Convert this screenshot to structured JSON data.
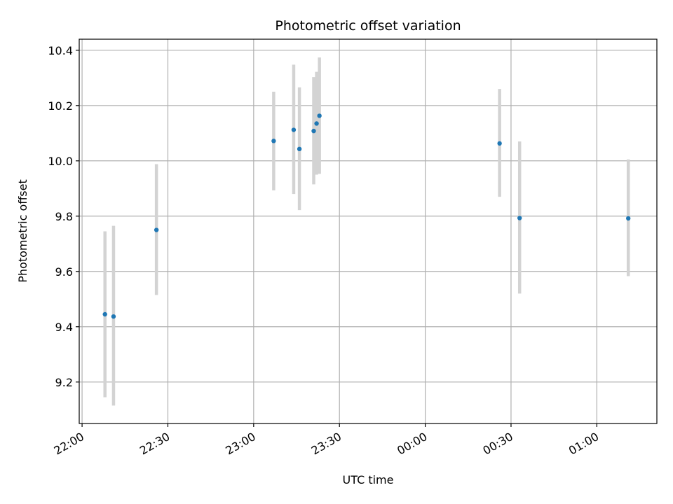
{
  "chart_data": {
    "type": "scatter",
    "title": "Photometric offset variation",
    "xlabel": "UTC time",
    "ylabel": "Photometric offset",
    "xlim": [
      "21:59",
      "01:21"
    ],
    "ylim": [
      9.05,
      10.44
    ],
    "xticks": [
      {
        "value": "22:00",
        "label": "22:00"
      },
      {
        "value": "22:30",
        "label": "22:30"
      },
      {
        "value": "23:00",
        "label": "23:00"
      },
      {
        "value": "23:30",
        "label": "23:30"
      },
      {
        "value": "00:00",
        "label": "00:00"
      },
      {
        "value": "00:30",
        "label": "00:30"
      },
      {
        "value": "01:00",
        "label": "01:00"
      }
    ],
    "yticks": [
      9.2,
      9.4,
      9.6,
      9.8,
      10.0,
      10.2,
      10.4
    ],
    "ytick_labels": [
      "9.2",
      "9.4",
      "9.6",
      "9.8",
      "10.0",
      "10.2",
      "10.4"
    ],
    "grid": true,
    "marker_color": "#1f77b4",
    "errorbar_color": "#d3d3d3",
    "series": [
      {
        "points": [
          {
            "x": "22:08",
            "y": 9.445,
            "ymin": 9.145,
            "ymax": 9.745
          },
          {
            "x": "22:11",
            "y": 9.437,
            "ymin": 9.115,
            "ymax": 9.765
          },
          {
            "x": "22:26",
            "y": 9.75,
            "ymin": 9.515,
            "ymax": 9.988
          },
          {
            "x": "23:07",
            "y": 10.072,
            "ymin": 9.893,
            "ymax": 10.25
          },
          {
            "x": "23:14",
            "y": 10.112,
            "ymin": 9.88,
            "ymax": 10.348
          },
          {
            "x": "23:16",
            "y": 10.043,
            "ymin": 9.822,
            "ymax": 10.266
          },
          {
            "x": "23:21",
            "y": 10.108,
            "ymin": 9.915,
            "ymax": 10.303
          },
          {
            "x": "23:22",
            "y": 10.135,
            "ymin": 9.95,
            "ymax": 10.322
          },
          {
            "x": "23:23",
            "y": 10.163,
            "ymin": 9.953,
            "ymax": 10.374
          },
          {
            "x": "00:26",
            "y": 10.063,
            "ymin": 9.87,
            "ymax": 10.26
          },
          {
            "x": "00:33",
            "y": 9.793,
            "ymin": 9.52,
            "ymax": 10.07
          },
          {
            "x": "01:11",
            "y": 9.792,
            "ymin": 9.583,
            "ymax": 10.005
          }
        ]
      }
    ]
  }
}
